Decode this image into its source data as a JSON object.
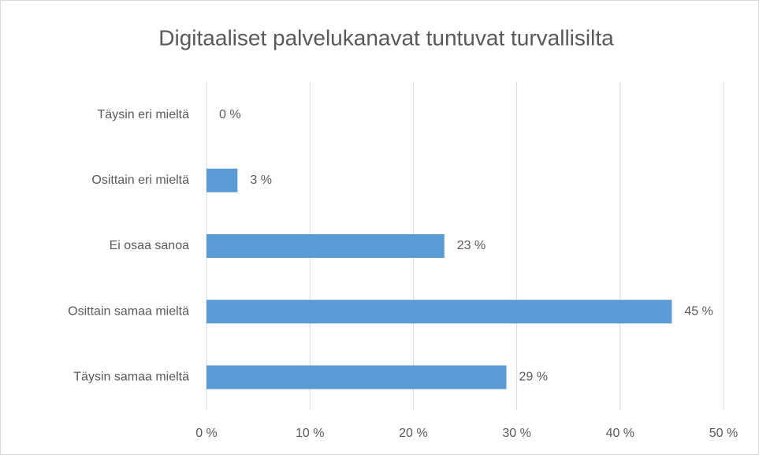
{
  "chart_data": {
    "type": "bar",
    "orientation": "horizontal",
    "title": "Digitaaliset palvelukanavat tuntuvat turvallisilta",
    "categories": [
      "Täysin eri mieltä",
      "Osittain eri mieltä",
      "Ei osaa sanoa",
      "Osittain samaa mieltä",
      "Täysin samaa mieltä"
    ],
    "values": [
      0,
      3,
      23,
      45,
      29
    ],
    "value_labels": [
      "0 %",
      "3 %",
      "23 %",
      "45 %",
      "29 %"
    ],
    "color": "#5b9bd5",
    "xlim": [
      0,
      50
    ],
    "xticks": [
      {
        "value": 0,
        "label": "0 %"
      },
      {
        "value": 10,
        "label": "10 %"
      },
      {
        "value": 20,
        "label": "20 %"
      },
      {
        "value": 30,
        "label": "30 %"
      },
      {
        "value": 40,
        "label": "40 %"
      },
      {
        "value": 50,
        "label": "50 %"
      }
    ],
    "grid": true
  }
}
